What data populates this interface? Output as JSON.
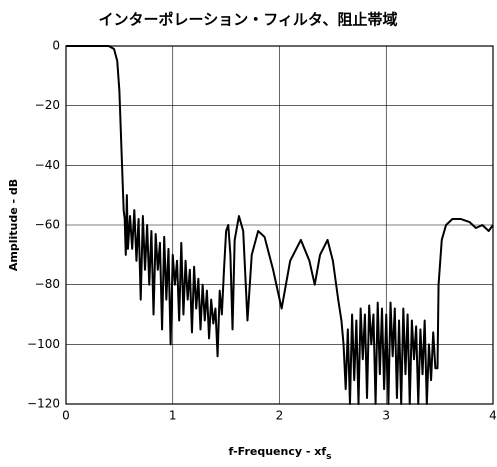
{
  "chart_data": {
    "type": "line",
    "title": "インターポレーション・フィルタ、阻止帯域",
    "xlabel": "f-Frequency - xf",
    "xlabel_subscript": "s",
    "ylabel": "Amplitude - dB",
    "color": "#000000",
    "grid": true,
    "xlim": [
      0,
      4
    ],
    "xticks": [
      0,
      1,
      2,
      3,
      4
    ],
    "ylim": [
      -120,
      0
    ],
    "yticks": [
      0,
      {
        "value": -20,
        "label": "−20"
      },
      {
        "value": -40,
        "label": "−40"
      },
      {
        "value": -60,
        "label": "−60"
      },
      {
        "value": -80,
        "label": "−80"
      },
      {
        "value": -100,
        "label": "−100"
      },
      {
        "value": -120,
        "label": "−120"
      }
    ],
    "x": [
      0,
      0.1,
      0.2,
      0.3,
      0.4,
      0.45,
      0.48,
      0.5,
      0.52,
      0.54,
      0.55,
      0.56,
      0.57,
      0.58,
      0.6,
      0.62,
      0.64,
      0.66,
      0.68,
      0.7,
      0.72,
      0.74,
      0.76,
      0.78,
      0.8,
      0.82,
      0.84,
      0.86,
      0.88,
      0.9,
      0.92,
      0.94,
      0.96,
      0.98,
      1.0,
      1.02,
      1.04,
      1.06,
      1.08,
      1.1,
      1.12,
      1.14,
      1.16,
      1.18,
      1.2,
      1.22,
      1.24,
      1.26,
      1.28,
      1.3,
      1.32,
      1.34,
      1.36,
      1.38,
      1.4,
      1.42,
      1.44,
      1.46,
      1.48,
      1.5,
      1.52,
      1.54,
      1.56,
      1.58,
      1.62,
      1.66,
      1.7,
      1.74,
      1.8,
      1.86,
      1.94,
      2.02,
      2.1,
      2.2,
      2.28,
      2.33,
      2.38,
      2.45,
      2.5,
      2.55,
      2.58,
      2.6,
      2.62,
      2.64,
      2.66,
      2.68,
      2.7,
      2.72,
      2.74,
      2.76,
      2.78,
      2.8,
      2.82,
      2.84,
      2.86,
      2.88,
      2.9,
      2.92,
      2.94,
      2.96,
      2.98,
      3.0,
      3.02,
      3.04,
      3.06,
      3.08,
      3.1,
      3.12,
      3.14,
      3.16,
      3.18,
      3.2,
      3.22,
      3.24,
      3.26,
      3.28,
      3.3,
      3.32,
      3.34,
      3.36,
      3.38,
      3.4,
      3.42,
      3.44,
      3.46,
      3.48,
      3.49,
      3.52,
      3.56,
      3.62,
      3.7,
      3.78,
      3.84,
      3.9,
      3.96,
      4.0
    ],
    "values": [
      0,
      0,
      0,
      0,
      0,
      -1,
      -5,
      -15,
      -35,
      -55,
      -58,
      -70,
      -50,
      -68,
      -57,
      -68,
      -55,
      -72,
      -58,
      -85,
      -57,
      -75,
      -60,
      -80,
      -62,
      -90,
      -63,
      -75,
      -66,
      -95,
      -64,
      -85,
      -68,
      -100,
      -70,
      -80,
      -72,
      -92,
      -66,
      -90,
      -72,
      -85,
      -75,
      -96,
      -74,
      -88,
      -78,
      -95,
      -80,
      -92,
      -82,
      -98,
      -85,
      -93,
      -88,
      -104,
      -82,
      -90,
      -75,
      -62,
      -60,
      -70,
      -95,
      -65,
      -57,
      -62,
      -92,
      -70,
      -62,
      -64,
      -75,
      -88,
      -72,
      -65,
      -72,
      -80,
      -70,
      -65,
      -72,
      -85,
      -92,
      -100,
      -115,
      -95,
      -120,
      -90,
      -112,
      -92,
      -120,
      -88,
      -105,
      -90,
      -118,
      -87,
      -100,
      -90,
      -120,
      -86,
      -110,
      -88,
      -115,
      -90,
      -120,
      -86,
      -104,
      -88,
      -118,
      -92,
      -120,
      -88,
      -110,
      -90,
      -120,
      -92,
      -105,
      -94,
      -120,
      -95,
      -110,
      -92,
      -120,
      -100,
      -112,
      -96,
      -108,
      -108,
      -80,
      -65,
      -60,
      -58,
      -58,
      -59,
      -61,
      -60,
      -62,
      -60
    ]
  }
}
